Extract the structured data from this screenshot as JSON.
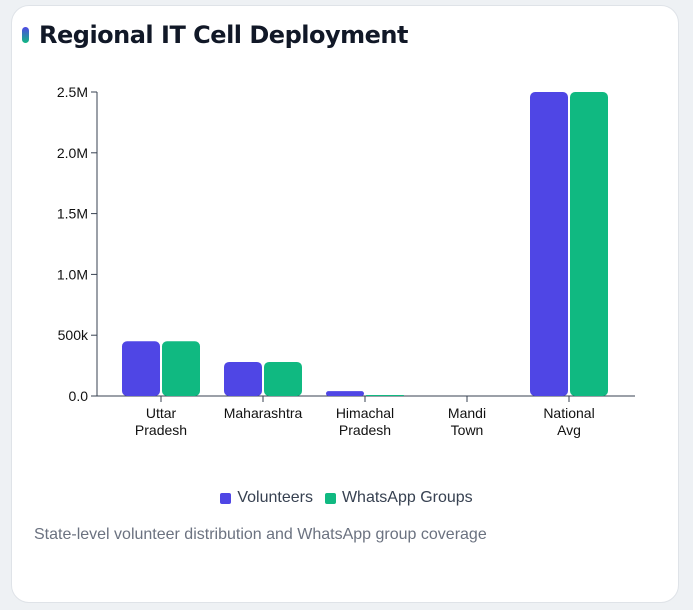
{
  "title": "Regional IT Cell Deployment",
  "caption": "State-level volunteer distribution and WhatsApp group coverage",
  "chart_data": {
    "type": "bar",
    "categories": [
      [
        "Uttar",
        "Pradesh"
      ],
      [
        "Maharashtra"
      ],
      [
        "Himachal",
        "Pradesh"
      ],
      [
        "Mandi",
        "Town"
      ],
      [
        "National",
        "Avg"
      ]
    ],
    "series": [
      {
        "name": "Volunteers",
        "color": "#4f46e5",
        "values": [
          450000,
          280000,
          40000,
          0,
          2500000
        ]
      },
      {
        "name": "WhatsApp Groups",
        "color": "#10b981",
        "values": [
          450000,
          280000,
          2000,
          0,
          2500000
        ]
      }
    ],
    "ylim": [
      0,
      2500000
    ],
    "yticks": [
      0,
      500000,
      1000000,
      1500000,
      2000000,
      2500000
    ],
    "ytick_labels": [
      "0.0",
      "500k",
      "1.0M",
      "1.5M",
      "2.0M",
      "2.5M"
    ],
    "grid": false,
    "legend_position": "bottom"
  }
}
